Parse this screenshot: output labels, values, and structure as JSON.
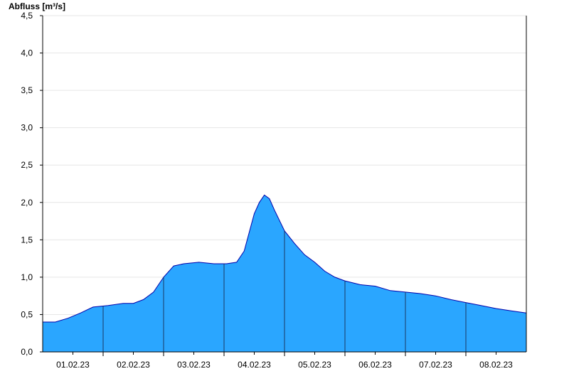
{
  "chart_data": {
    "type": "area",
    "ylabel": "Abfluss [m³/s]",
    "ylim": [
      0,
      4.5
    ],
    "y_ticks": [
      0,
      0.5,
      1.0,
      1.5,
      2.0,
      2.5,
      3.0,
      3.5,
      4.0,
      4.5
    ],
    "y_tick_labels": [
      "0,0",
      "0,5",
      "1,0",
      "1,5",
      "2,0",
      "2,5",
      "3,0",
      "3,5",
      "4,0",
      "4,5"
    ],
    "xlim": [
      "2023-01-31T12:00",
      "2023-02-08T12:00"
    ],
    "x_tick_dates": [
      "2023-02-01",
      "2023-02-02",
      "2023-02-03",
      "2023-02-04",
      "2023-02-05",
      "2023-02-06",
      "2023-02-07",
      "2023-02-08"
    ],
    "x_tick_labels": [
      "01.02.23",
      "02.02.23",
      "03.02.23",
      "04.02.23",
      "05.02.23",
      "06.02.23",
      "07.02.23",
      "08.02.23"
    ],
    "day_boundaries": [
      "2023-02-01T12:00",
      "2023-02-02T12:00",
      "2023-02-03T12:00",
      "2023-02-04T12:00",
      "2023-02-05T12:00",
      "2023-02-06T12:00",
      "2023-02-07T12:00"
    ],
    "grid": true,
    "fill_color": "#2aa6ff",
    "line_color": "#0000aa",
    "series": [
      {
        "x": [
          "2023-01-31T12:00",
          "2023-01-31T17:00",
          "2023-01-31T22:00",
          "2023-02-01T03:00",
          "2023-02-01T08:00",
          "2023-02-01T14:00",
          "2023-02-01T20:00",
          "2023-02-02T00:00",
          "2023-02-02T04:00",
          "2023-02-02T08:00",
          "2023-02-02T12:00",
          "2023-02-02T16:00",
          "2023-02-02T20:00",
          "2023-02-03T02:00",
          "2023-02-03T08:00",
          "2023-02-03T13:00",
          "2023-02-03T17:00",
          "2023-02-03T20:00",
          "2023-02-03T22:00",
          "2023-02-04T00:00",
          "2023-02-04T02:00",
          "2023-02-04T04:00",
          "2023-02-04T06:00",
          "2023-02-04T08:00",
          "2023-02-04T12:00",
          "2023-02-04T16:00",
          "2023-02-04T20:00",
          "2023-02-05T00:00",
          "2023-02-05T04:00",
          "2023-02-05T08:00",
          "2023-02-05T12:00",
          "2023-02-05T18:00",
          "2023-02-06T00:00",
          "2023-02-06T06:00",
          "2023-02-06T12:00",
          "2023-02-06T18:00",
          "2023-02-07T00:00",
          "2023-02-07T06:00",
          "2023-02-07T12:00",
          "2023-02-07T18:00",
          "2023-02-08T00:00",
          "2023-02-08T06:00",
          "2023-02-08T12:00"
        ],
        "y": [
          0.4,
          0.4,
          0.45,
          0.52,
          0.6,
          0.62,
          0.65,
          0.65,
          0.7,
          0.8,
          1.0,
          1.15,
          1.18,
          1.2,
          1.18,
          1.18,
          1.2,
          1.35,
          1.6,
          1.85,
          2.0,
          2.1,
          2.05,
          1.9,
          1.62,
          1.45,
          1.3,
          1.2,
          1.08,
          1.0,
          0.95,
          0.9,
          0.88,
          0.82,
          0.8,
          0.78,
          0.75,
          0.7,
          0.66,
          0.62,
          0.58,
          0.55,
          0.52
        ]
      }
    ]
  }
}
